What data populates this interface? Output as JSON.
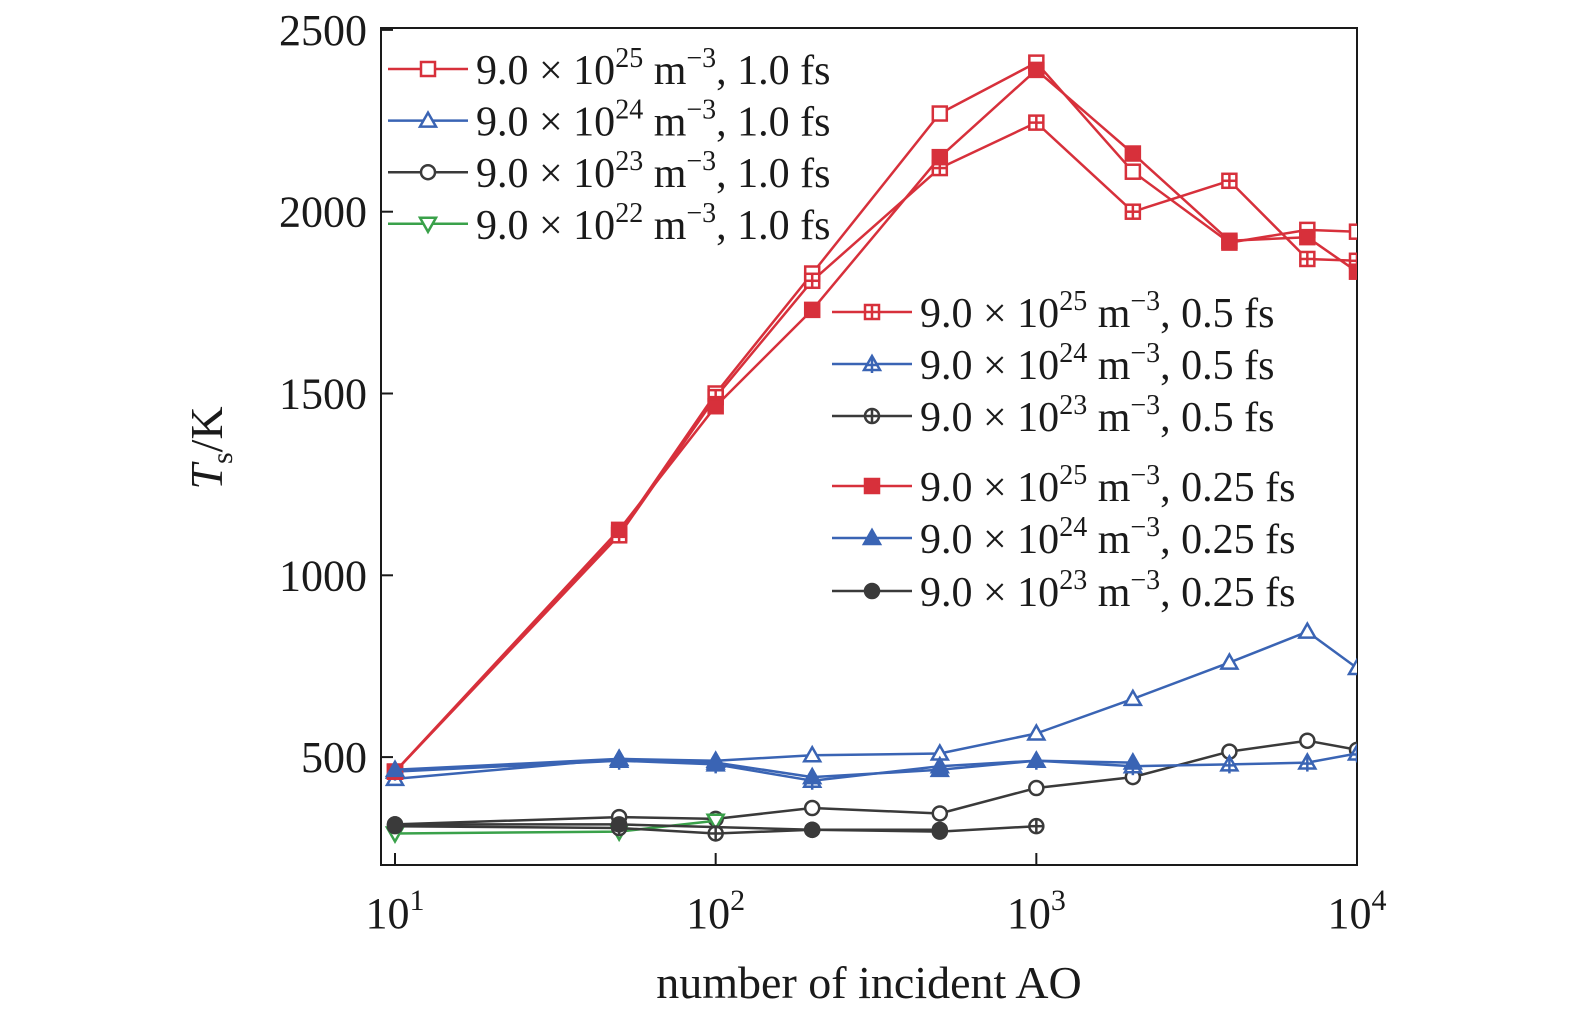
{
  "chart_data": {
    "type": "line",
    "xscale": "log",
    "xlim": [
      10,
      10000
    ],
    "ylim": [
      250,
      2500
    ],
    "xlabel": "number of incident AO",
    "ylabel": {
      "main": "T",
      "sub": "s",
      "suffix": "/K"
    },
    "x_ticks": [
      {
        "value": 10,
        "base": "10",
        "exp": "1"
      },
      {
        "value": 100,
        "base": "10",
        "exp": "2"
      },
      {
        "value": 1000,
        "base": "10",
        "exp": "3"
      },
      {
        "value": 10000,
        "base": "10",
        "exp": "4"
      }
    ],
    "y_ticks": [
      500,
      1000,
      1500,
      2000,
      2500
    ],
    "colors": {
      "red": "#d7303b",
      "blue": "#3a64b4",
      "black": "#3a3a3a",
      "green": "#3aa14a"
    },
    "series": [
      {
        "id": "r10",
        "label": {
          "pre": "9.0 × 10",
          "exp": "25",
          "mid": " m",
          "exp2": "−3",
          "post": ", 1.0 fs"
        },
        "color": "red",
        "marker": "square-open",
        "x": [
          10,
          50,
          100,
          200,
          500,
          1000,
          2000,
          4000,
          7000,
          10000
        ],
        "y": [
          460,
          1115,
          1500,
          1830,
          2270,
          2410,
          2110,
          1915,
          1950,
          1945
        ]
      },
      {
        "id": "b10",
        "label": {
          "pre": "9.0 × 10",
          "exp": "24",
          "mid": " m",
          "exp2": "−3",
          "post": ", 1.0 fs"
        },
        "color": "blue",
        "marker": "triangle-up-open",
        "x": [
          10,
          50,
          100,
          200,
          500,
          1000,
          2000,
          4000,
          7000,
          10000
        ],
        "y": [
          440,
          495,
          490,
          505,
          510,
          565,
          660,
          760,
          845,
          745
        ]
      },
      {
        "id": "k10",
        "label": {
          "pre": "9.0 × 10",
          "exp": "23",
          "mid": " m",
          "exp2": "−3",
          "post": ", 1.0 fs"
        },
        "color": "black",
        "marker": "circle-open",
        "x": [
          10,
          50,
          100,
          200,
          500,
          1000,
          2000,
          4000,
          7000,
          10000
        ],
        "y": [
          315,
          335,
          330,
          360,
          345,
          415,
          445,
          515,
          545,
          520
        ]
      },
      {
        "id": "g10",
        "label": {
          "pre": "9.0 × 10",
          "exp": "22",
          "mid": " m",
          "exp2": "−3",
          "post": ", 1.0 fs"
        },
        "color": "green",
        "marker": "triangle-down-open",
        "x": [
          10,
          50,
          100
        ],
        "y": [
          290,
          295,
          325
        ]
      },
      {
        "id": "r05",
        "label": {
          "pre": "9.0 × 10",
          "exp": "25",
          "mid": " m",
          "exp2": "−3",
          "post": ", 0.5 fs"
        },
        "color": "red",
        "marker": "square-plus",
        "x": [
          10,
          50,
          100,
          200,
          500,
          1000,
          2000,
          4000,
          7000,
          10000
        ],
        "y": [
          460,
          1110,
          1490,
          1810,
          2120,
          2245,
          2000,
          2085,
          1870,
          1865
        ]
      },
      {
        "id": "b05",
        "label": {
          "pre": "9.0 × 10",
          "exp": "24",
          "mid": " m",
          "exp2": "−3",
          "post": ", 0.5 fs"
        },
        "color": "blue",
        "marker": "triangle-plus",
        "x": [
          10,
          50,
          100,
          200,
          500,
          1000,
          2000,
          4000,
          7000,
          10000
        ],
        "y": [
          460,
          490,
          480,
          435,
          475,
          490,
          475,
          480,
          485,
          510
        ]
      },
      {
        "id": "k05",
        "label": {
          "pre": "9.0 × 10",
          "exp": "23",
          "mid": " m",
          "exp2": "−3",
          "post": ", 0.5 fs"
        },
        "color": "black",
        "marker": "circle-plus",
        "x": [
          10,
          50,
          100,
          200,
          500,
          1000
        ],
        "y": [
          310,
          305,
          290,
          300,
          295,
          310
        ]
      },
      {
        "id": "r025",
        "label": {
          "pre": "9.0 × 10",
          "exp": "25",
          "mid": " m",
          "exp2": "−3",
          "post": ", 0.25 fs"
        },
        "color": "red",
        "marker": "square-filled",
        "x": [
          10,
          50,
          100,
          200,
          500,
          1000,
          2000,
          4000,
          7000,
          10000
        ],
        "y": [
          460,
          1125,
          1465,
          1730,
          2150,
          2390,
          2160,
          1920,
          1930,
          1835
        ]
      },
      {
        "id": "b025",
        "label": {
          "pre": "9.0 × 10",
          "exp": "24",
          "mid": " m",
          "exp2": "−3",
          "post": ", 0.25 fs"
        },
        "color": "blue",
        "marker": "triangle-filled",
        "x": [
          10,
          50,
          100,
          200,
          500,
          1000,
          2000
        ],
        "y": [
          465,
          495,
          485,
          445,
          465,
          490,
          485
        ]
      },
      {
        "id": "k025",
        "label": {
          "pre": "9.0 × 10",
          "exp": "23",
          "mid": " m",
          "exp2": "−3",
          "post": ", 0.25 fs"
        },
        "color": "black",
        "marker": "circle-filled",
        "x": [
          10,
          50,
          200,
          500
        ],
        "y": [
          315,
          315,
          300,
          300
        ]
      }
    ],
    "legends": [
      {
        "placement": "top-left",
        "series": [
          "r10",
          "b10",
          "k10",
          "g10"
        ]
      },
      {
        "placement": "right-middle",
        "series": [
          "r05",
          "b05",
          "k05",
          "r025",
          "b025",
          "k025"
        ]
      }
    ]
  }
}
